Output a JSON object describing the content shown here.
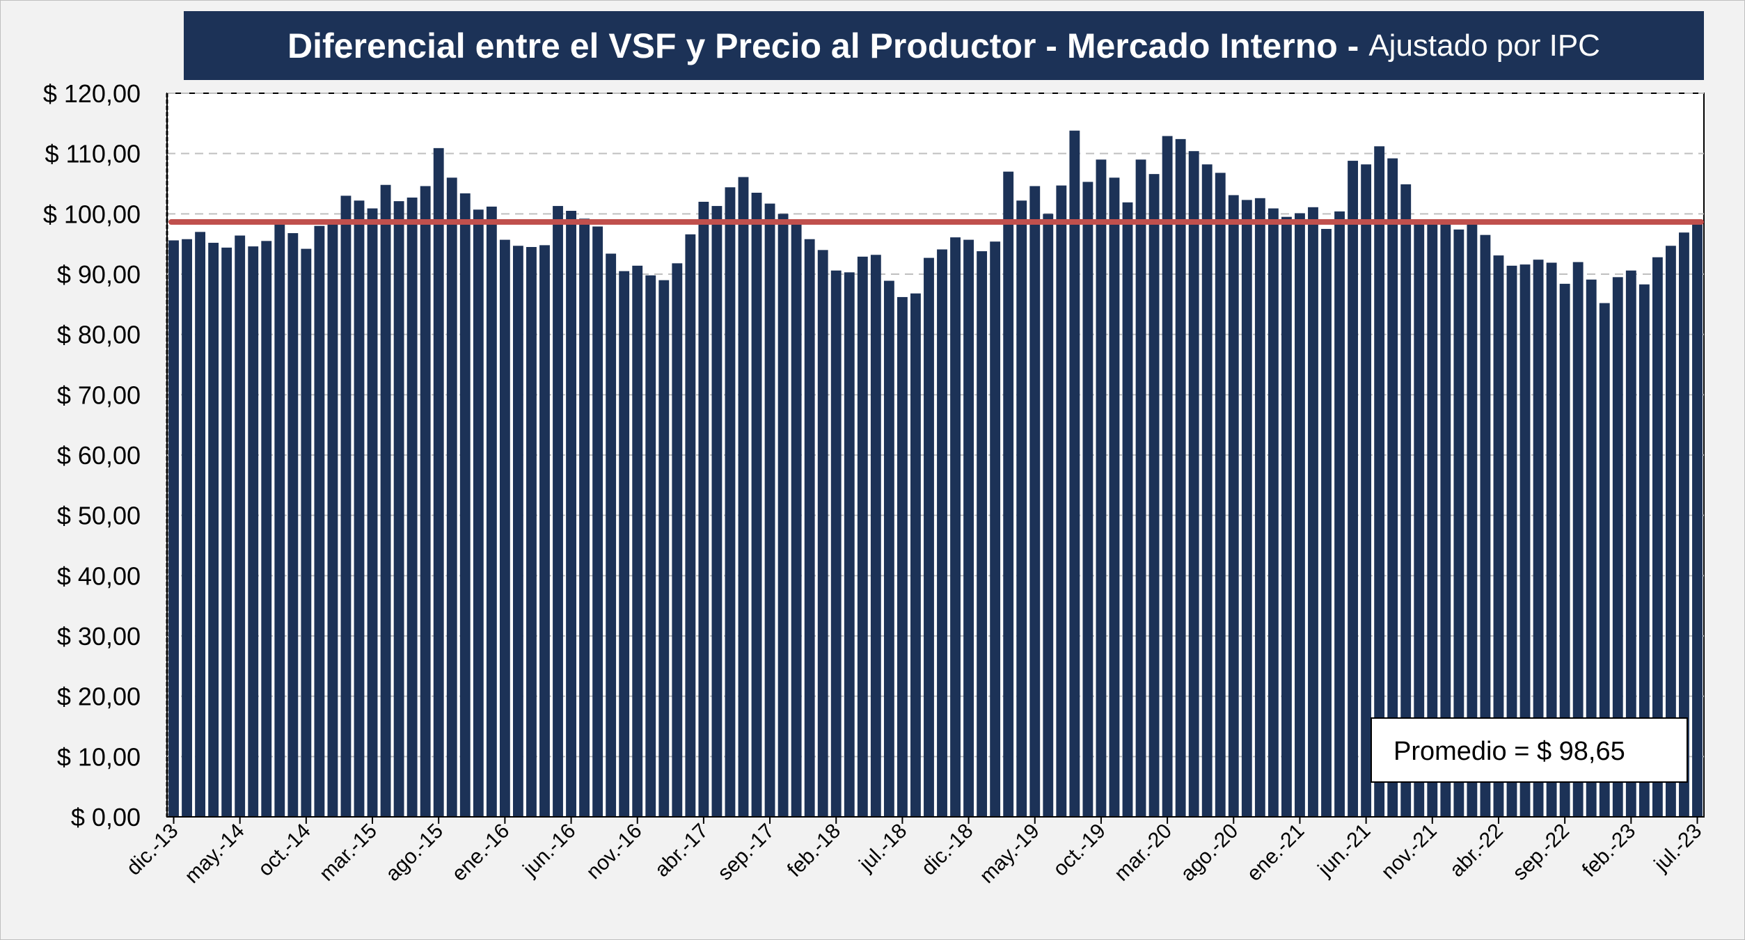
{
  "chart_data": {
    "type": "bar",
    "title": "Diferencial entre el VSF y Precio al Productor - Mercado Interno -",
    "subtitle": "Ajustado por IPC",
    "ylim": [
      0,
      120
    ],
    "ytick_values": [
      0,
      10,
      20,
      30,
      40,
      50,
      60,
      70,
      80,
      90,
      100,
      110,
      120
    ],
    "ytick_labels": [
      "$ 0,00",
      "$ 10,00",
      "$ 20,00",
      "$ 30,00",
      "$ 40,00",
      "$ 50,00",
      "$ 60,00",
      "$ 70,00",
      "$ 80,00",
      "$ 90,00",
      "$ 100,00",
      "$ 110,00",
      "$ 120,00"
    ],
    "grid": "horizontal-dashed",
    "xtick_labels": [
      {
        "index": 0,
        "label": "dic.-13"
      },
      {
        "index": 5,
        "label": "may.-14"
      },
      {
        "index": 10,
        "label": "oct.-14"
      },
      {
        "index": 15,
        "label": "mar.-15"
      },
      {
        "index": 20,
        "label": "ago.-15"
      },
      {
        "index": 25,
        "label": "ene.-16"
      },
      {
        "index": 30,
        "label": "jun.-16"
      },
      {
        "index": 35,
        "label": "nov.-16"
      },
      {
        "index": 40,
        "label": "abr.-17"
      },
      {
        "index": 45,
        "label": "sep.-17"
      },
      {
        "index": 50,
        "label": "feb.-18"
      },
      {
        "index": 55,
        "label": "jul.-18"
      },
      {
        "index": 60,
        "label": "dic.-18"
      },
      {
        "index": 65,
        "label": "may.-19"
      },
      {
        "index": 70,
        "label": "oct.-19"
      },
      {
        "index": 75,
        "label": "mar.-20"
      },
      {
        "index": 80,
        "label": "ago.-20"
      },
      {
        "index": 85,
        "label": "ene.-21"
      },
      {
        "index": 90,
        "label": "jun.-21"
      },
      {
        "index": 95,
        "label": "nov.-21"
      },
      {
        "index": 100,
        "label": "abr.-22"
      },
      {
        "index": 105,
        "label": "sep.-22"
      },
      {
        "index": 110,
        "label": "feb.-23"
      },
      {
        "index": 115,
        "label": "jul.-23"
      }
    ],
    "values": [
      95.6,
      95.8,
      97.0,
      95.2,
      94.4,
      96.4,
      94.6,
      95.5,
      98.5,
      96.8,
      94.2,
      98.0,
      98.3,
      103.0,
      102.2,
      100.9,
      104.8,
      102.1,
      102.7,
      104.6,
      110.9,
      106.0,
      103.4,
      100.7,
      101.2,
      95.7,
      94.7,
      94.5,
      94.8,
      101.3,
      100.5,
      99.2,
      97.9,
      93.4,
      90.5,
      91.4,
      89.8,
      89.0,
      91.8,
      96.6,
      102.0,
      101.3,
      104.4,
      106.1,
      103.5,
      101.7,
      100.0,
      98.5,
      95.8,
      94.0,
      90.6,
      90.3,
      92.9,
      93.2,
      88.9,
      86.2,
      86.8,
      92.7,
      94.1,
      96.1,
      95.7,
      93.8,
      95.4,
      107.0,
      102.2,
      104.6,
      100.0,
      104.7,
      113.8,
      105.3,
      109.0,
      106.0,
      101.9,
      109.0,
      106.6,
      112.9,
      112.4,
      110.4,
      108.2,
      106.8,
      103.1,
      102.3,
      102.6,
      100.9,
      99.5,
      100.1,
      101.1,
      97.5,
      100.4,
      108.8,
      108.2,
      111.2,
      109.2,
      104.9,
      98.5,
      98.9,
      99.0,
      97.4,
      98.3,
      96.5,
      93.1,
      91.4,
      91.6,
      92.4,
      91.9,
      88.4,
      92.0,
      89.1,
      85.2,
      89.5,
      90.6,
      88.3,
      92.8,
      94.7,
      96.9,
      98.5
    ],
    "bar_color": "#1c3257",
    "average": {
      "value": 98.65,
      "label": "Promedio = $ 98,65",
      "color": "#c0504d"
    }
  }
}
